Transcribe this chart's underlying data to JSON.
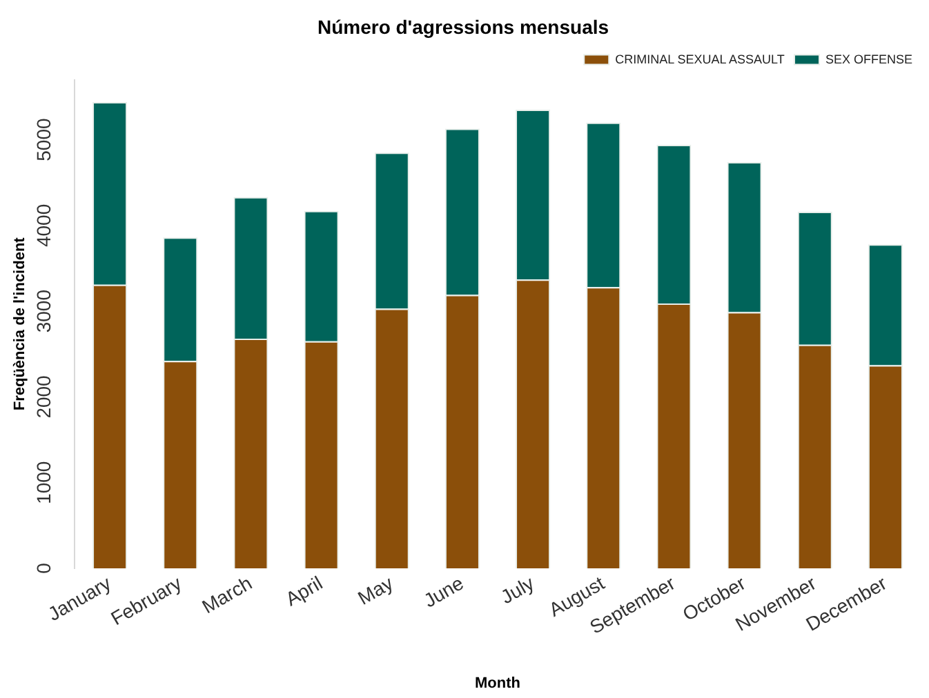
{
  "chart_data": {
    "type": "bar",
    "title": "Número d'agressions mensuals",
    "xlabel": "Month",
    "ylabel": "Freqüència de l'incident",
    "categories": [
      "January",
      "February",
      "March",
      "April",
      "May",
      "June",
      "July",
      "August",
      "September",
      "October",
      "November",
      "December"
    ],
    "stacked": true,
    "legend": "top right",
    "grid": false,
    "ylim": [
      0,
      5700
    ],
    "yticks": [
      0,
      1000,
      2000,
      3000,
      4000,
      5000
    ],
    "series": [
      {
        "name": "CRIMINAL SEXUAL ASSAULT",
        "color": "#8b4f0a",
        "values": [
          3310,
          2420,
          2680,
          2650,
          3030,
          3190,
          3370,
          3280,
          3090,
          2990,
          2610,
          2370
        ]
      },
      {
        "name": "SEX OFFENSE",
        "color": "#00645a",
        "values": [
          2130,
          1440,
          1650,
          1520,
          1820,
          1940,
          1980,
          1920,
          1850,
          1750,
          1550,
          1410
        ]
      }
    ]
  }
}
